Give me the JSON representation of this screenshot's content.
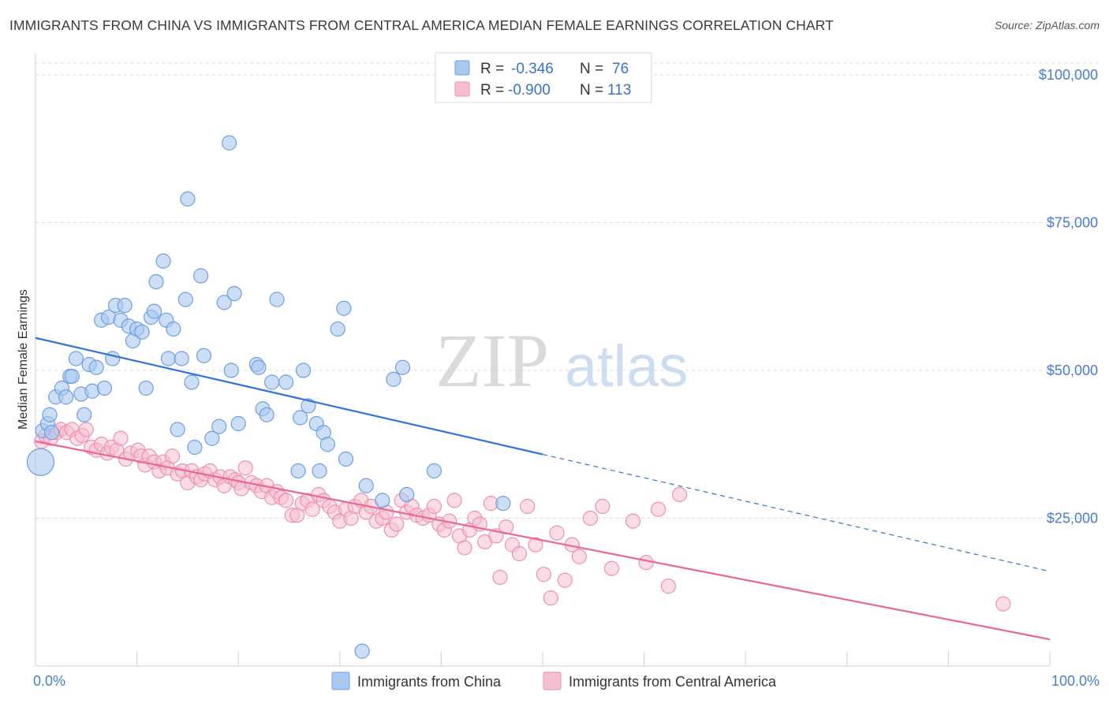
{
  "title": "IMMIGRANTS FROM CHINA VS IMMIGRANTS FROM CENTRAL AMERICA MEDIAN FEMALE EARNINGS CORRELATION CHART",
  "source": "Source: ZipAtlas.com",
  "watermark": {
    "zip": "ZIP",
    "atlas": "atlas"
  },
  "colors": {
    "china_fill": "#a9c8ef",
    "china_stroke": "#6d9ee0",
    "china_line": "#3173d6",
    "ca_fill": "#f6bfd0",
    "ca_stroke": "#ee8fb0",
    "ca_line": "#e8679a",
    "axis_text": "#4a7cc9",
    "grid": "#d9d9d9"
  },
  "legend": {
    "rows": [
      {
        "r_label": "R =",
        "r_value": "-0.346",
        "n_label": "N =",
        "n_value": "76"
      },
      {
        "r_label": "R =",
        "r_value": "-0.900",
        "n_label": "N =",
        "n_value": "113"
      }
    ]
  },
  "chart_data": {
    "type": "scatter",
    "ylabel": "Median Female Earnings",
    "xlabel": "",
    "x_tick_labels": [
      "0.0%",
      "100.0%"
    ],
    "y_tick_labels": [
      "$25,000",
      "$50,000",
      "$75,000",
      "$100,000"
    ],
    "y_ticks": [
      25000,
      50000,
      75000,
      100000
    ],
    "xlim": [
      0,
      100
    ],
    "ylim": [
      0,
      102000
    ],
    "grid": true,
    "legend_position": "top-center",
    "series": [
      {
        "name": "Immigrants from China",
        "trend": {
          "x": [
            0,
            50
          ],
          "y": [
            55500,
            35800
          ],
          "dashed_to": [
            100,
            16000
          ]
        },
        "points": [
          [
            0.5,
            34500
          ],
          [
            0.7,
            39800
          ],
          [
            1.2,
            41000
          ],
          [
            1.6,
            39500
          ],
          [
            1.4,
            42500
          ],
          [
            2.0,
            45500
          ],
          [
            2.6,
            47000
          ],
          [
            3.0,
            45500
          ],
          [
            3.4,
            49000
          ],
          [
            3.6,
            49000
          ],
          [
            4.0,
            52000
          ],
          [
            4.5,
            46000
          ],
          [
            4.8,
            42500
          ],
          [
            5.3,
            51000
          ],
          [
            5.6,
            46500
          ],
          [
            6.0,
            50500
          ],
          [
            6.5,
            58500
          ],
          [
            6.8,
            47000
          ],
          [
            7.2,
            59000
          ],
          [
            7.6,
            52000
          ],
          [
            7.9,
            61000
          ],
          [
            8.4,
            58500
          ],
          [
            8.8,
            61000
          ],
          [
            9.2,
            57500
          ],
          [
            9.6,
            55000
          ],
          [
            10.0,
            57000
          ],
          [
            10.5,
            56500
          ],
          [
            10.9,
            47000
          ],
          [
            11.4,
            59000
          ],
          [
            11.7,
            60000
          ],
          [
            11.9,
            65000
          ],
          [
            12.6,
            68500
          ],
          [
            12.9,
            58500
          ],
          [
            13.1,
            52000
          ],
          [
            13.6,
            57000
          ],
          [
            14.0,
            40000
          ],
          [
            14.4,
            52000
          ],
          [
            14.8,
            62000
          ],
          [
            15.0,
            79000
          ],
          [
            15.4,
            48000
          ],
          [
            15.7,
            37000
          ],
          [
            16.3,
            66000
          ],
          [
            16.6,
            52500
          ],
          [
            17.4,
            38500
          ],
          [
            18.1,
            40500
          ],
          [
            18.6,
            61500
          ],
          [
            19.1,
            88500
          ],
          [
            19.3,
            50000
          ],
          [
            19.6,
            63000
          ],
          [
            20.0,
            41000
          ],
          [
            21.8,
            51000
          ],
          [
            22.0,
            50500
          ],
          [
            22.4,
            43500
          ],
          [
            22.8,
            42500
          ],
          [
            23.3,
            48000
          ],
          [
            23.8,
            62000
          ],
          [
            24.7,
            48000
          ],
          [
            25.9,
            33000
          ],
          [
            26.1,
            42000
          ],
          [
            26.4,
            50000
          ],
          [
            26.9,
            44000
          ],
          [
            27.7,
            41000
          ],
          [
            28.0,
            33000
          ],
          [
            28.4,
            39500
          ],
          [
            28.8,
            37500
          ],
          [
            29.8,
            57000
          ],
          [
            30.4,
            60500
          ],
          [
            30.6,
            35000
          ],
          [
            32.6,
            30500
          ],
          [
            34.2,
            28000
          ],
          [
            35.3,
            48500
          ],
          [
            36.2,
            50500
          ],
          [
            36.6,
            29000
          ],
          [
            39.3,
            33000
          ],
          [
            46.1,
            27500
          ],
          [
            32.2,
            2500
          ]
        ]
      },
      {
        "name": "Immigrants from Central America",
        "trend": {
          "x": [
            0,
            100
          ],
          "y": [
            38000,
            4500
          ]
        },
        "points": [
          [
            0.6,
            38000
          ],
          [
            1.0,
            39000
          ],
          [
            1.5,
            38500
          ],
          [
            2.1,
            39500
          ],
          [
            2.5,
            40000
          ],
          [
            3.1,
            39500
          ],
          [
            3.6,
            40000
          ],
          [
            4.1,
            38500
          ],
          [
            4.6,
            39000
          ],
          [
            5.0,
            40000
          ],
          [
            5.5,
            37000
          ],
          [
            6.0,
            36500
          ],
          [
            6.5,
            37500
          ],
          [
            7.1,
            36000
          ],
          [
            7.5,
            37000
          ],
          [
            8.0,
            36500
          ],
          [
            8.4,
            38500
          ],
          [
            8.9,
            35000
          ],
          [
            9.4,
            36000
          ],
          [
            10.1,
            36500
          ],
          [
            10.4,
            35500
          ],
          [
            10.8,
            34000
          ],
          [
            11.2,
            35500
          ],
          [
            11.7,
            34500
          ],
          [
            12.2,
            33000
          ],
          [
            12.6,
            34500
          ],
          [
            13.0,
            33500
          ],
          [
            13.5,
            35500
          ],
          [
            14.0,
            32500
          ],
          [
            14.5,
            33000
          ],
          [
            15.0,
            31000
          ],
          [
            15.4,
            33000
          ],
          [
            15.9,
            32000
          ],
          [
            16.3,
            31500
          ],
          [
            16.7,
            32500
          ],
          [
            17.2,
            33000
          ],
          [
            17.7,
            31500
          ],
          [
            18.2,
            32000
          ],
          [
            18.6,
            30500
          ],
          [
            19.2,
            32000
          ],
          [
            19.7,
            31500
          ],
          [
            20.0,
            31000
          ],
          [
            20.3,
            30000
          ],
          [
            20.7,
            33500
          ],
          [
            21.3,
            31000
          ],
          [
            21.8,
            30500
          ],
          [
            22.3,
            29500
          ],
          [
            22.8,
            30500
          ],
          [
            23.3,
            28500
          ],
          [
            23.8,
            29500
          ],
          [
            24.2,
            28500
          ],
          [
            24.7,
            28000
          ],
          [
            25.3,
            25500
          ],
          [
            25.8,
            25500
          ],
          [
            26.3,
            27500
          ],
          [
            26.8,
            28000
          ],
          [
            27.3,
            26500
          ],
          [
            27.9,
            29000
          ],
          [
            28.4,
            28000
          ],
          [
            29.0,
            27000
          ],
          [
            29.5,
            26000
          ],
          [
            30.0,
            24500
          ],
          [
            30.6,
            26500
          ],
          [
            31.1,
            25000
          ],
          [
            31.5,
            27000
          ],
          [
            32.1,
            28000
          ],
          [
            32.6,
            26000
          ],
          [
            33.1,
            27000
          ],
          [
            33.6,
            24500
          ],
          [
            34.2,
            25000
          ],
          [
            34.6,
            26000
          ],
          [
            35.1,
            23000
          ],
          [
            35.6,
            24000
          ],
          [
            36.1,
            28000
          ],
          [
            36.6,
            26000
          ],
          [
            37.1,
            27000
          ],
          [
            37.6,
            25500
          ],
          [
            38.2,
            25000
          ],
          [
            38.8,
            25500
          ],
          [
            39.3,
            27000
          ],
          [
            39.8,
            24000
          ],
          [
            40.3,
            23000
          ],
          [
            40.8,
            24500
          ],
          [
            41.3,
            28000
          ],
          [
            41.8,
            22000
          ],
          [
            42.3,
            20000
          ],
          [
            42.8,
            23000
          ],
          [
            43.3,
            25000
          ],
          [
            43.8,
            24000
          ],
          [
            44.3,
            21000
          ],
          [
            44.9,
            27500
          ],
          [
            45.4,
            22000
          ],
          [
            45.8,
            15000
          ],
          [
            46.4,
            23500
          ],
          [
            47.0,
            20500
          ],
          [
            47.7,
            19000
          ],
          [
            48.5,
            27000
          ],
          [
            49.3,
            20500
          ],
          [
            50.1,
            15500
          ],
          [
            50.8,
            11500
          ],
          [
            51.4,
            22500
          ],
          [
            52.2,
            14500
          ],
          [
            52.9,
            20500
          ],
          [
            53.6,
            18500
          ],
          [
            54.7,
            25000
          ],
          [
            55.9,
            27000
          ],
          [
            56.8,
            16500
          ],
          [
            58.9,
            24500
          ],
          [
            60.2,
            17500
          ],
          [
            61.4,
            26500
          ],
          [
            62.4,
            13500
          ],
          [
            63.5,
            29000
          ],
          [
            95.4,
            10500
          ]
        ]
      }
    ]
  },
  "bottom_legend": [
    {
      "label": "Immigrants from China"
    },
    {
      "label": "Immigrants from Central America"
    }
  ]
}
